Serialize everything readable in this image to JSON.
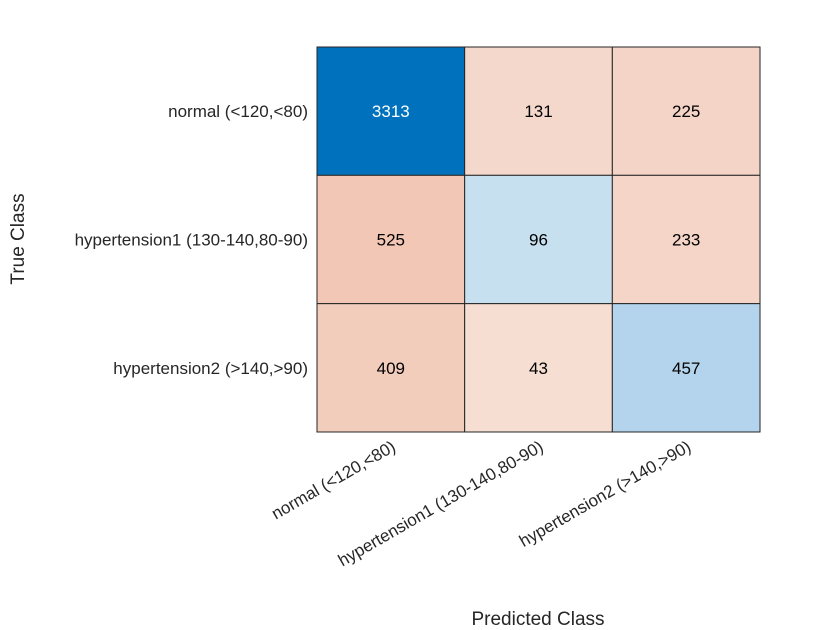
{
  "chart_data": {
    "type": "heatmap",
    "title": "",
    "xlabel": "Predicted Class",
    "ylabel": "True Class",
    "row_labels": [
      "normal (<120,<80)",
      "hypertension1 (130-140,80-90)",
      "hypertension2 (>140,>90)"
    ],
    "col_labels": [
      "normal (<120,<80)",
      "hypertension1 (130-140,80-90)",
      "hypertension2 (>140,>90)"
    ],
    "values": [
      [
        3313,
        131,
        225
      ],
      [
        525,
        96,
        233
      ],
      [
        409,
        43,
        457
      ]
    ],
    "cell_colors": [
      [
        "#0072BD",
        "#F5D8CC",
        "#F4D4C6"
      ],
      [
        "#F3C7B5",
        "#C7E0F0",
        "#F4D5C7"
      ],
      [
        "#F3CDBC",
        "#F6DED3",
        "#B3D4EC"
      ]
    ],
    "cell_text_colors": [
      [
        "#FFFFFF",
        "#000000",
        "#000000"
      ],
      [
        "#000000",
        "#000000",
        "#000000"
      ],
      [
        "#000000",
        "#000000",
        "#000000"
      ]
    ],
    "grid": true,
    "legend": "none"
  }
}
